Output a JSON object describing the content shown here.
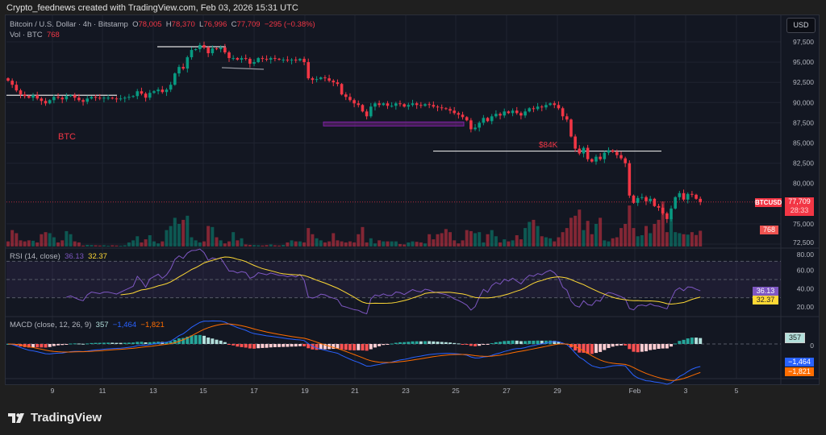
{
  "credit": "Crypto_feednews created with TradingView.com, Feb 03, 2026 15:31 UTC",
  "legend": {
    "symbol": "Bitcoin / U.S. Dollar · 4h · Bitstamp",
    "o_label": "O",
    "o": "78,005",
    "h_label": "H",
    "h": "78,370",
    "l_label": "L",
    "l": "76,996",
    "c_label": "C",
    "c": "77,709",
    "change": "−295 (−0.38%)",
    "vol_label": "Vol · BTC",
    "vol": "768"
  },
  "rsi": {
    "label": "RSI (14, close)",
    "value": "36.13",
    "ma": "32.37",
    "ticks": [
      "80.00",
      "60.00",
      "40.00",
      "20.00"
    ]
  },
  "macd": {
    "label": "MACD (close, 12, 26, 9)",
    "hist": "357",
    "macd": "−1,464",
    "signal": "−1,821",
    "zero_tick": "0"
  },
  "price_axis": {
    "currency": "USD",
    "ticks": [
      "97,500",
      "95,000",
      "92,500",
      "90,000",
      "87,500",
      "85,000",
      "82,500",
      "80,000",
      "75,000",
      "72,500"
    ]
  },
  "current": {
    "symbol": "BTCUSD",
    "price": "77,709",
    "countdown": "28:33",
    "volume": "768"
  },
  "annotations": {
    "btc_text": "BTC",
    "level_text": "$84K"
  },
  "brand": "TradingView",
  "colors": {
    "up": "#089981",
    "down": "#f23645",
    "rsi": "#7e57c2",
    "rsi_ma": "#fdd835",
    "macd": "#2962ff",
    "signal": "#ff6d00",
    "annotation_red": "#f23645",
    "zone": "#9c27b0"
  },
  "chart_data": {
    "type": "candlestick",
    "interval": "4h",
    "x_ticks": [
      "9",
      "11",
      "13",
      "15",
      "17",
      "19",
      "21",
      "23",
      "25",
      "27",
      "29",
      "Feb",
      "3",
      "5"
    ],
    "ylim": [
      72500,
      98000
    ],
    "closes": [
      92700,
      92200,
      91500,
      91000,
      90800,
      90600,
      90900,
      90500,
      90200,
      89900,
      90300,
      90700,
      90600,
      90400,
      90800,
      90900,
      90600,
      90300,
      90100,
      90500,
      90700,
      90600,
      90500,
      90600,
      90600,
      90500,
      90400,
      90500,
      90600,
      90700,
      90800,
      91400,
      91100,
      90600,
      91200,
      91400,
      91600,
      91300,
      91600,
      92200,
      93600,
      94400,
      94200,
      95600,
      96500,
      96600,
      97100,
      96800,
      96100,
      96700,
      96600,
      96800,
      96200,
      95500,
      95500,
      95300,
      95500,
      95400,
      94800,
      95000,
      95500,
      95400,
      95300,
      95500,
      95400,
      95300,
      95300,
      95200,
      95300,
      95200,
      95400,
      95000,
      93000,
      92800,
      92900,
      93100,
      93000,
      92700,
      92500,
      92300,
      91000,
      90700,
      90300,
      89900,
      89700,
      88900,
      88300,
      89500,
      89900,
      89700,
      89900,
      89600,
      89600,
      89900,
      89800,
      89500,
      89700,
      89900,
      89700,
      89600,
      89800,
      89700,
      89500,
      89400,
      89300,
      89200,
      89000,
      88700,
      88500,
      88200,
      87800,
      86700,
      86900,
      87500,
      88100,
      87700,
      88300,
      88600,
      88400,
      88900,
      88700,
      89000,
      88700,
      88400,
      88900,
      89300,
      89200,
      89500,
      89400,
      89700,
      89900,
      89700,
      89300,
      88300,
      87900,
      85800,
      84300,
      83700,
      84400,
      83000,
      82700,
      83300,
      83000,
      83800,
      84100,
      83900,
      83500,
      83100,
      82500,
      78500,
      77600,
      78200,
      78300,
      77800,
      78100,
      77200,
      77000,
      76300,
      75600,
      76900,
      78300,
      78800,
      78005,
      78700,
      78600,
      78100,
      77709
    ],
    "volumes": [
      250,
      800,
      650,
      300,
      250,
      300,
      280,
      200,
      600,
      700,
      650,
      450,
      200,
      300,
      750,
      600,
      250,
      200,
      50,
      80,
      70,
      60,
      50,
      60,
      40,
      60,
      50,
      40,
      60,
      200,
      300,
      500,
      200,
      350,
      550,
      250,
      150,
      250,
      800,
      1000,
      1400,
      1100,
      1300,
      1500,
      450,
      300,
      200,
      250,
      1000,
      950,
      450,
      300,
      150,
      250,
      700,
      300,
      400,
      100,
      80,
      70,
      60,
      50,
      70,
      100,
      60,
      50,
      80,
      200,
      300,
      250,
      250,
      200,
      900,
      600,
      400,
      300,
      200,
      250,
      650,
      300,
      250,
      200,
      250,
      200,
      600,
      950,
      200,
      400,
      150,
      300,
      250,
      250,
      250,
      250,
      120,
      100,
      200,
      250,
      230,
      200,
      150,
      600,
      350,
      600,
      650,
      850,
      700,
      300,
      150,
      300,
      800,
      750,
      650,
      700,
      200,
      600,
      800,
      500,
      200,
      350,
      250,
      300,
      550,
      350,
      900,
      1200,
      1300,
      1000,
      500,
      450,
      400,
      250,
      450,
      700,
      900,
      1400,
      1500,
      1800,
      800,
      1250,
      600,
      1100,
      1400,
      300,
      250,
      400,
      450,
      900,
      1100,
      2000,
      900,
      500,
      550,
      1000,
      650,
      1100,
      1300,
      2200,
      700,
      1400,
      700,
      650,
      600,
      580,
      700,
      560,
      768
    ],
    "levels": [
      {
        "kind": "horizontal-line",
        "price": 90900
      },
      {
        "kind": "horizontal-line",
        "price": 96900
      },
      {
        "kind": "trend-line",
        "price": 94500
      },
      {
        "kind": "zone",
        "price_from": 87100,
        "price_to": 87600
      },
      {
        "kind": "horizontal-line",
        "price": 84000
      }
    ]
  }
}
